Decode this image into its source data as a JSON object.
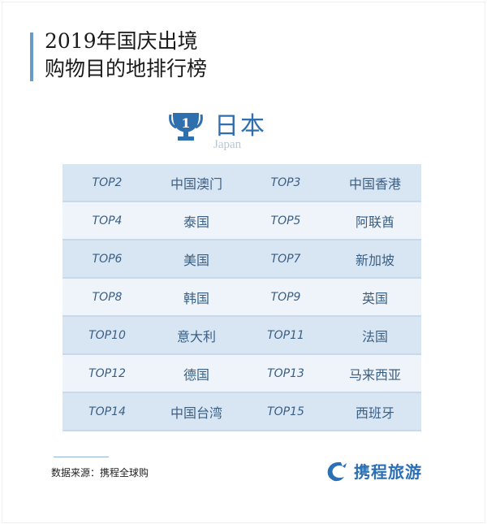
{
  "title": {
    "line1": "2019年国庆出境",
    "line2": "购物目的地排行榜"
  },
  "first": {
    "rank": "1",
    "name": "日本",
    "name_en": "Japan"
  },
  "rows": [
    [
      {
        "rank": "TOP2",
        "place": "中国澳门"
      },
      {
        "rank": "TOP3",
        "place": "中国香港"
      }
    ],
    [
      {
        "rank": "TOP4",
        "place": "泰国"
      },
      {
        "rank": "TOP5",
        "place": "阿联酋"
      }
    ],
    [
      {
        "rank": "TOP6",
        "place": "美国"
      },
      {
        "rank": "TOP7",
        "place": "新加坡"
      }
    ],
    [
      {
        "rank": "TOP8",
        "place": "韩国"
      },
      {
        "rank": "TOP9",
        "place": "英国"
      }
    ],
    [
      {
        "rank": "TOP10",
        "place": "意大利"
      },
      {
        "rank": "TOP11",
        "place": "法国"
      }
    ],
    [
      {
        "rank": "TOP12",
        "place": "德国"
      },
      {
        "rank": "TOP13",
        "place": "马来西亚"
      }
    ],
    [
      {
        "rank": "TOP14",
        "place": "中国台湾"
      },
      {
        "rank": "TOP15",
        "place": "西班牙"
      }
    ]
  ],
  "source": "数据来源：携程全球购",
  "logo": {
    "text": "携程旅游",
    "icon": "dolphin-icon"
  },
  "colors": {
    "accent": "#2f6fae",
    "row_dark": "#d8e6f4",
    "row_light": "#eef4fa"
  }
}
